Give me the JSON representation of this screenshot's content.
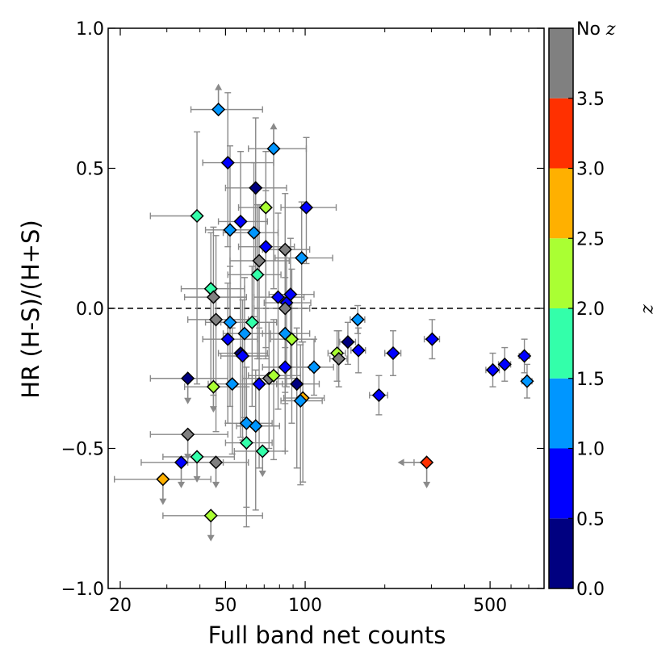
{
  "chart_data": {
    "type": "scatter",
    "xlabel": "Full band net counts",
    "ylabel": "HR (H-S)/(H+S)",
    "xscale": "log",
    "xlim": [
      18,
      800
    ],
    "ylim": [
      -1.0,
      1.0
    ],
    "x_ticks": [
      20,
      50,
      100,
      500
    ],
    "x_tick_labels": [
      "20",
      "50",
      "100",
      "500"
    ],
    "y_ticks": [
      -1.0,
      -0.5,
      0.0,
      0.5,
      1.0
    ],
    "y_tick_labels": [
      "−1.0",
      "−0.5",
      "0.0",
      "0.5",
      "1.0"
    ],
    "reference_line": {
      "y": 0.0,
      "style": "dashed"
    },
    "colorbar": {
      "label": "z",
      "no_z_label": "No",
      "no_z_symbol": "z",
      "tick_labels": [
        "0.0",
        "0.5",
        "1.0",
        "1.5",
        "2.0",
        "2.5",
        "3.0",
        "3.5"
      ],
      "bins": [
        {
          "range": [
            0.0,
            0.5
          ],
          "color": "#000080"
        },
        {
          "range": [
            0.5,
            1.0
          ],
          "color": "#0000ff"
        },
        {
          "range": [
            1.0,
            1.5
          ],
          "color": "#0096ff"
        },
        {
          "range": [
            1.5,
            2.0
          ],
          "color": "#33ffaa"
        },
        {
          "range": [
            2.0,
            2.5
          ],
          "color": "#aaff33"
        },
        {
          "range": [
            2.5,
            3.0
          ],
          "color": "#ffb000"
        },
        {
          "range": [
            3.0,
            3.5
          ],
          "color": "#ff3000"
        },
        {
          "range": [
            "No z"
          ],
          "color": "#808080"
        }
      ]
    },
    "points": [
      {
        "x": 47,
        "y": 0.71,
        "xerr": [
          10,
          22
        ],
        "yerr": [
          0,
          0
        ],
        "z": 1.0,
        "limit": "lower"
      },
      {
        "x": 51,
        "y": 0.52,
        "xerr": [
          10,
          25
        ],
        "yerr": [
          0.3,
          0.25
        ],
        "z": 0.7
      },
      {
        "x": 76,
        "y": 0.57,
        "xerr": [
          15,
          25
        ],
        "yerr": [
          0.5,
          0
        ],
        "z": 1.0,
        "limit": "lower"
      },
      {
        "x": 65,
        "y": 0.43,
        "xerr": [
          15,
          20
        ],
        "yerr": [
          0.3,
          0.25
        ],
        "z": 0.3
      },
      {
        "x": 39,
        "y": 0.33,
        "xerr": [
          13,
          0
        ],
        "yerr": [
          0.6,
          0.3
        ],
        "z": 1.6
      },
      {
        "x": 71,
        "y": 0.36,
        "xerr": [
          15,
          0
        ],
        "yerr": [
          0.5,
          0.2
        ],
        "z": 2.2
      },
      {
        "x": 101,
        "y": 0.36,
        "xerr": [
          20,
          30
        ],
        "yerr": [
          0.2,
          0.25
        ],
        "z": 0.7
      },
      {
        "x": 57,
        "y": 0.31,
        "xerr": [
          10,
          15
        ],
        "yerr": [
          0.35,
          0.25
        ],
        "z": 0.6
      },
      {
        "x": 52,
        "y": 0.28,
        "xerr": [
          10,
          15
        ],
        "yerr": [
          0.35,
          0.3
        ],
        "z": 1.0
      },
      {
        "x": 64,
        "y": 0.27,
        "xerr": [
          15,
          15
        ],
        "yerr": [
          0.3,
          0.25
        ],
        "z": 1.2
      },
      {
        "x": 71,
        "y": 0.22,
        "xerr": [
          15,
          20
        ],
        "yerr": [
          0.4,
          0.2
        ],
        "z": 0.7
      },
      {
        "x": 84,
        "y": 0.21,
        "xerr": [
          15,
          20
        ],
        "yerr": [
          0.35,
          0.2
        ],
        "z": "none"
      },
      {
        "x": 67,
        "y": 0.17,
        "xerr": [
          15,
          20
        ],
        "yerr": [
          0.35,
          0.2
        ],
        "z": "none"
      },
      {
        "x": 97,
        "y": 0.18,
        "xerr": [
          20,
          30
        ],
        "yerr": [
          0.3,
          0.2
        ],
        "z": 1.2
      },
      {
        "x": 66,
        "y": 0.12,
        "xerr": [
          15,
          15
        ],
        "yerr": [
          0.3,
          0.25
        ],
        "z": 1.7
      },
      {
        "x": 79,
        "y": 0.04,
        "xerr": [
          15,
          20
        ],
        "yerr": [
          0.4,
          0.3
        ],
        "z": 0.6
      },
      {
        "x": 88,
        "y": 0.05,
        "xerr": [
          15,
          20
        ],
        "yerr": [
          0.3,
          0.2
        ],
        "z": 0.7
      },
      {
        "x": 85,
        "y": 0.02,
        "xerr": [
          15,
          20
        ],
        "yerr": [
          0.3,
          0.2
        ],
        "z": 0.8
      },
      {
        "x": 84,
        "y": 0.0,
        "xerr": [
          20,
          20
        ],
        "yerr": [
          0.3,
          0.2
        ],
        "z": "none"
      },
      {
        "x": 44,
        "y": 0.07,
        "xerr": [
          10,
          15
        ],
        "yerr": [
          0.35,
          0.2
        ],
        "z": 1.6
      },
      {
        "x": 45,
        "y": 0.04,
        "xerr": [
          10,
          15
        ],
        "yerr": [
          0.35,
          0.25
        ],
        "z": "none"
      },
      {
        "x": 46,
        "y": -0.04,
        "xerr": [
          10,
          15
        ],
        "yerr": [
          0.4,
          0.3
        ],
        "z": "none"
      },
      {
        "x": 52,
        "y": -0.05,
        "xerr": [
          10,
          15
        ],
        "yerr": [
          0.3,
          0.2
        ],
        "z": 1.0
      },
      {
        "x": 63,
        "y": -0.05,
        "xerr": [
          15,
          15
        ],
        "yerr": [
          0.3,
          0.2
        ],
        "z": 1.7
      },
      {
        "x": 158,
        "y": -0.04,
        "xerr": [
          10,
          10
        ],
        "yerr": [
          0.05,
          0.05
        ],
        "z": 1.1
      },
      {
        "x": 84,
        "y": -0.09,
        "xerr": [
          15,
          20
        ],
        "yerr": [
          0.25,
          0.2
        ],
        "z": 1.1
      },
      {
        "x": 89,
        "y": -0.11,
        "xerr": [
          15,
          20
        ],
        "yerr": [
          0.3,
          0.25
        ],
        "z": 2.1
      },
      {
        "x": 51,
        "y": -0.11,
        "xerr": [
          10,
          15
        ],
        "yerr": [
          0.3,
          0.2
        ],
        "z": 0.7
      },
      {
        "x": 59,
        "y": -0.09,
        "xerr": [
          10,
          15
        ],
        "yerr": [
          0.3,
          0.2
        ],
        "z": 1.1
      },
      {
        "x": 145,
        "y": -0.12,
        "xerr": [
          10,
          10
        ],
        "yerr": [
          0.08,
          0.07
        ],
        "z": 0.3
      },
      {
        "x": 57,
        "y": -0.16,
        "xerr": [
          10,
          15
        ],
        "yerr": [
          0.3,
          0.2
        ],
        "z": 0.3
      },
      {
        "x": 58,
        "y": -0.17,
        "xerr": [
          10,
          15
        ],
        "yerr": [
          0.3,
          0.2
        ],
        "z": 0.6
      },
      {
        "x": 132,
        "y": -0.16,
        "xerr": [
          10,
          10
        ],
        "yerr": [
          0.1,
          0.08
        ],
        "z": 2.1
      },
      {
        "x": 134,
        "y": -0.18,
        "xerr": [
          10,
          10
        ],
        "yerr": [
          0.1,
          0.1
        ],
        "z": "none"
      },
      {
        "x": 159,
        "y": -0.15,
        "xerr": [
          10,
          10
        ],
        "yerr": [
          0.08,
          0.08
        ],
        "z": 0.6
      },
      {
        "x": 215,
        "y": -0.16,
        "xerr": [
          15,
          15
        ],
        "yerr": [
          0.08,
          0.08
        ],
        "z": 0.6
      },
      {
        "x": 302,
        "y": -0.11,
        "xerr": [
          20,
          20
        ],
        "yerr": [
          0.07,
          0.07
        ],
        "z": 0.6
      },
      {
        "x": 512,
        "y": -0.22,
        "xerr": [
          30,
          30
        ],
        "yerr": [
          0.06,
          0.06
        ],
        "z": 0.6
      },
      {
        "x": 568,
        "y": -0.2,
        "xerr": [
          30,
          30
        ],
        "yerr": [
          0.06,
          0.06
        ],
        "z": 0.6
      },
      {
        "x": 674,
        "y": -0.17,
        "xerr": [
          30,
          30
        ],
        "yerr": [
          0.06,
          0.06
        ],
        "z": 0.6
      },
      {
        "x": 690,
        "y": -0.26,
        "xerr": [
          30,
          30
        ],
        "yerr": [
          0.06,
          0.06
        ],
        "z": 1.1
      },
      {
        "x": 84,
        "y": -0.21,
        "xerr": [
          15,
          20
        ],
        "yerr": [
          0.3,
          0.2
        ],
        "z": 0.6
      },
      {
        "x": 108,
        "y": -0.21,
        "xerr": [
          15,
          20
        ],
        "yerr": [
          0.1,
          0.1
        ],
        "z": 1.1
      },
      {
        "x": 36,
        "y": -0.25,
        "xerr": [
          10,
          15
        ],
        "yerr": [
          0.0,
          0.0
        ],
        "z": 0.3,
        "limit": "upper"
      },
      {
        "x": 45,
        "y": -0.28,
        "xerr": [
          10,
          15
        ],
        "yerr": [
          0.0,
          0.0
        ],
        "z": 2.1,
        "limit": "upper"
      },
      {
        "x": 53,
        "y": -0.27,
        "xerr": [
          10,
          15
        ],
        "yerr": [
          0.25,
          0.2
        ],
        "z": 1.1
      },
      {
        "x": 67,
        "y": -0.27,
        "xerr": [
          15,
          15
        ],
        "yerr": [
          0.3,
          0.2
        ],
        "z": 0.6
      },
      {
        "x": 73,
        "y": -0.25,
        "xerr": [
          15,
          20
        ],
        "yerr": [
          0.25,
          0.2
        ],
        "z": "none"
      },
      {
        "x": 76,
        "y": -0.24,
        "xerr": [
          15,
          20
        ],
        "yerr": [
          0.3,
          0.2
        ],
        "z": 2.1
      },
      {
        "x": 93,
        "y": -0.27,
        "xerr": [
          15,
          20
        ],
        "yerr": [
          0.3,
          0.2
        ],
        "z": 0.3
      },
      {
        "x": 98,
        "y": -0.32,
        "xerr": [
          15,
          20
        ],
        "yerr": [
          0.3,
          0.2
        ],
        "z": 2.8
      },
      {
        "x": 96,
        "y": -0.33,
        "xerr": [
          15,
          20
        ],
        "yerr": [
          0.3,
          0.2
        ],
        "z": 1.1
      },
      {
        "x": 190,
        "y": -0.31,
        "xerr": [
          15,
          15
        ],
        "yerr": [
          0.07,
          0.07
        ],
        "z": 0.6
      },
      {
        "x": 60,
        "y": -0.41,
        "xerr": [
          10,
          15
        ],
        "yerr": [
          0.3,
          0.2
        ],
        "z": 1.1
      },
      {
        "x": 65,
        "y": -0.42,
        "xerr": [
          10,
          15
        ],
        "yerr": [
          0.3,
          0.2
        ],
        "z": 1.1
      },
      {
        "x": 36,
        "y": -0.45,
        "xerr": [
          10,
          15
        ],
        "yerr": [
          0.0,
          0.0
        ],
        "z": "none",
        "limit": "upper"
      },
      {
        "x": 60,
        "y": -0.48,
        "xerr": [
          10,
          15
        ],
        "yerr": [
          0.3,
          0.2
        ],
        "z": 1.7
      },
      {
        "x": 69,
        "y": -0.51,
        "xerr": [
          15,
          15
        ],
        "yerr": [
          0.0,
          0.0
        ],
        "z": 1.7,
        "limit": "upper"
      },
      {
        "x": 34,
        "y": -0.55,
        "xerr": [
          10,
          15
        ],
        "yerr": [
          0.0,
          0.0
        ],
        "z": 0.6,
        "limit": "upper"
      },
      {
        "x": 39,
        "y": -0.53,
        "xerr": [
          10,
          15
        ],
        "yerr": [
          0.0,
          0.0
        ],
        "z": 1.7,
        "limit": "upper"
      },
      {
        "x": 46,
        "y": -0.55,
        "xerr": [
          10,
          15
        ],
        "yerr": [
          0.0,
          0.0
        ],
        "z": "none",
        "limit": "upper"
      },
      {
        "x": 288,
        "y": -0.55,
        "xerr": [
          30,
          0
        ],
        "yerr": [
          0.0,
          0.0
        ],
        "z": 3.3,
        "limit": "upper"
      },
      {
        "x": 29,
        "y": -0.61,
        "xerr": [
          10,
          15
        ],
        "yerr": [
          0.0,
          0.0
        ],
        "z": 2.7,
        "limit": "upper"
      },
      {
        "x": 44,
        "y": -0.74,
        "xerr": [
          15,
          25
        ],
        "yerr": [
          0.0,
          0.0
        ],
        "z": 2.1,
        "limit": "upper"
      }
    ]
  }
}
